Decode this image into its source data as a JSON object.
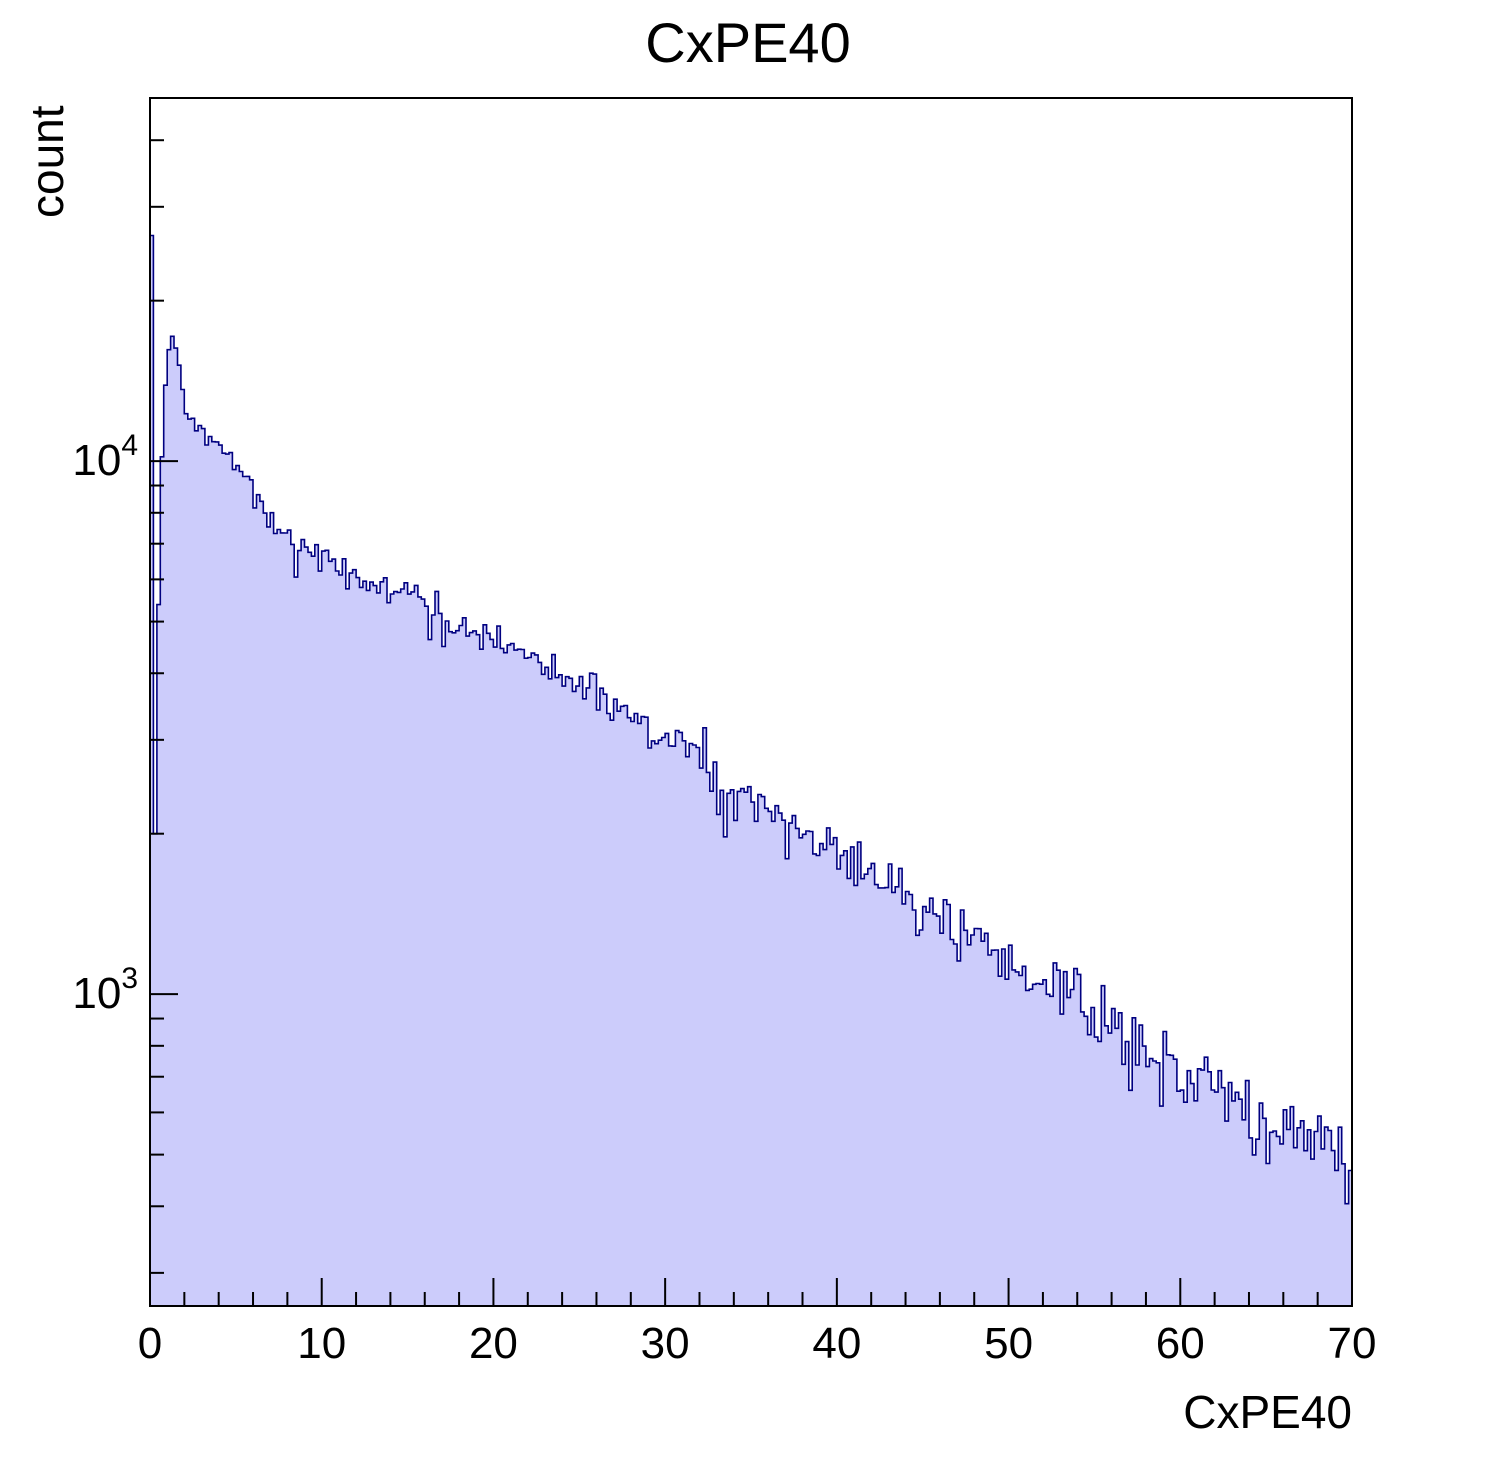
{
  "chart_data": {
    "type": "bar",
    "subtype": "histogram-step-filled",
    "title": "CxPE40",
    "xlabel": "CxPE40",
    "ylabel": "count",
    "x_range": [
      0,
      70
    ],
    "y_scale": "log",
    "y_range": [
      260,
      48000
    ],
    "bin_width": 0.2,
    "x_major_ticks": [
      0,
      10,
      20,
      30,
      40,
      50,
      60,
      70
    ],
    "x_minor_step": 2,
    "y_major_ticks": [
      {
        "value": 1000,
        "base": "10",
        "exp": "3"
      },
      {
        "value": 10000,
        "base": "10",
        "exp": "4"
      }
    ],
    "first_bin_spike": 26500,
    "envelope": [
      [
        0.3,
        1900
      ],
      [
        0.5,
        5500
      ],
      [
        0.7,
        10000
      ],
      [
        0.9,
        14000
      ],
      [
        1.1,
        16300
      ],
      [
        1.3,
        17400
      ],
      [
        1.6,
        16300
      ],
      [
        2.0,
        12800
      ],
      [
        2.5,
        11900
      ],
      [
        3.0,
        11400
      ],
      [
        4.0,
        10600
      ],
      [
        5.0,
        9800
      ],
      [
        6.0,
        8900
      ],
      [
        7.0,
        7800
      ],
      [
        7.6,
        7400
      ],
      [
        8.2,
        7100
      ],
      [
        9.0,
        6800
      ],
      [
        10,
        6500
      ],
      [
        11,
        6300
      ],
      [
        12,
        6100
      ],
      [
        13,
        5900
      ],
      [
        14,
        5750
      ],
      [
        15,
        5600
      ],
      [
        16,
        5350
      ],
      [
        16.6,
        5100
      ],
      [
        17.4,
        4950
      ],
      [
        18,
        4900
      ],
      [
        19,
        4800
      ],
      [
        20,
        4650
      ],
      [
        21,
        4500
      ],
      [
        22,
        4350
      ],
      [
        23,
        4150
      ],
      [
        24,
        3950
      ],
      [
        25,
        3750
      ],
      [
        26,
        3600
      ],
      [
        27,
        3450
      ],
      [
        28,
        3300
      ],
      [
        29,
        3150
      ],
      [
        30,
        3000
      ],
      [
        31,
        2900
      ],
      [
        32,
        2800
      ],
      [
        33,
        2600
      ],
      [
        34,
        2450
      ],
      [
        35,
        2300
      ],
      [
        36,
        2200
      ],
      [
        37,
        2100
      ],
      [
        38,
        2030
      ],
      [
        39,
        1930
      ],
      [
        40,
        1840
      ],
      [
        41,
        1760
      ],
      [
        42,
        1680
      ],
      [
        43,
        1600
      ],
      [
        44,
        1510
      ],
      [
        45,
        1440
      ],
      [
        46,
        1380
      ],
      [
        47,
        1310
      ],
      [
        48,
        1250
      ],
      [
        49,
        1190
      ],
      [
        50,
        1140
      ],
      [
        51,
        1090
      ],
      [
        52,
        1040
      ],
      [
        53,
        1000
      ],
      [
        54,
        950
      ],
      [
        55,
        910
      ],
      [
        56,
        870
      ],
      [
        57,
        830
      ],
      [
        58,
        795
      ],
      [
        59,
        760
      ],
      [
        60,
        725
      ],
      [
        61,
        695
      ],
      [
        62,
        665
      ],
      [
        63,
        640
      ],
      [
        64,
        615
      ],
      [
        65,
        590
      ],
      [
        66,
        565
      ],
      [
        67,
        545
      ],
      [
        68,
        525
      ],
      [
        69,
        510
      ],
      [
        70,
        495
      ]
    ],
    "anomalies": [
      [
        5.7,
        1.05
      ],
      [
        6.1,
        0.94
      ],
      [
        8.1,
        1.08
      ],
      [
        8.5,
        0.92
      ],
      [
        16.3,
        0.87
      ],
      [
        16.7,
        1.07
      ],
      [
        17.1,
        0.9
      ],
      [
        32.3,
        1.12
      ],
      [
        32.7,
        0.84
      ],
      [
        33.1,
        0.82
      ],
      [
        33.5,
        0.86
      ],
      [
        34.1,
        0.9
      ],
      [
        54.3,
        1.08
      ],
      [
        55.1,
        0.88
      ]
    ],
    "noise_coeff": 2.3,
    "noise_seed": 42,
    "colors": {
      "fill": "#ccccfb",
      "line": "#000080",
      "axis": "#000000",
      "background": "#ffffff"
    }
  }
}
